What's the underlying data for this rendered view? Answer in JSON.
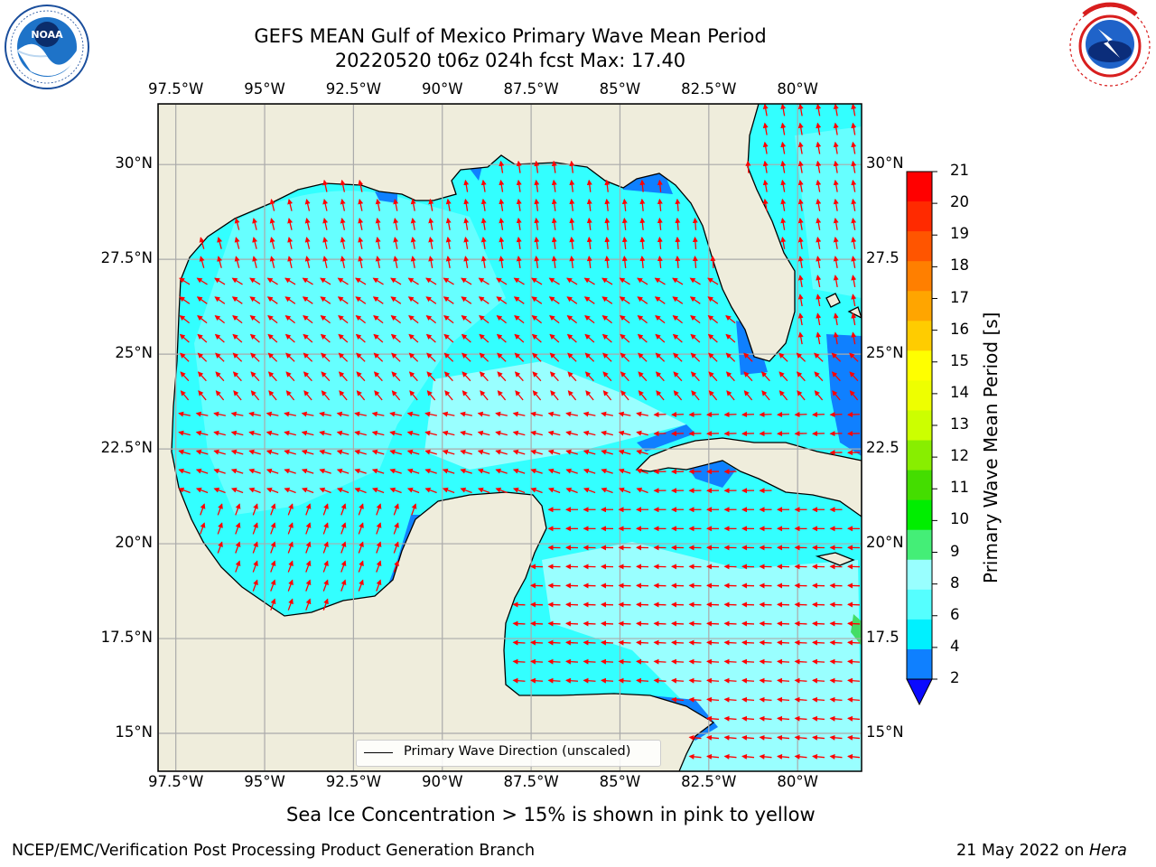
{
  "header": {
    "title_line1": "GEFS MEAN Gulf of Mexico Primary Wave Mean Period",
    "title_line2": "20220520 t06z 024h fcst   Max: 17.40",
    "left_logo": "noaa-logo",
    "right_logo": "nws-logo"
  },
  "map": {
    "lon_labels": [
      "97.5°W",
      "95°W",
      "92.5°W",
      "90°W",
      "87.5°W",
      "85°W",
      "82.5°W",
      "80°W"
    ],
    "lat_labels_left": [
      "30°N",
      "27.5°N",
      "25°N",
      "22.5°N",
      "20°N",
      "17.5°N",
      "15°N"
    ],
    "lat_labels_right": [
      "30°N",
      "27.5",
      "25°N",
      "22.5",
      "20°N",
      "17.5",
      "15°N"
    ],
    "lon_range": [
      -98,
      -78.2
    ],
    "lat_range": [
      14,
      31.6
    ],
    "land_color": "#efeddc",
    "water_colors": {
      "light_cyan": "#99ffff",
      "cyan": "#33ffff",
      "bright_cyan": "#00f0ff",
      "blue": "#0f80ff",
      "yellow": "#ffff00",
      "orange": "#ff9900",
      "green": "#44dd66"
    },
    "vector_color": "#ff0000",
    "legend_label": "Primary Wave Direction (unscaled)"
  },
  "colorbar": {
    "title": "Primary Wave Mean Period [s]",
    "tick_labels": [
      "21",
      "20",
      "19",
      "18",
      "17",
      "16",
      "15",
      "14",
      "13",
      "12",
      "11",
      "10",
      "9",
      "8",
      "6",
      "4",
      "2"
    ],
    "colors": [
      "#ff0000",
      "#ff2a00",
      "#ff5500",
      "#ff7f00",
      "#ffa500",
      "#ffcc00",
      "#ffff00",
      "#eeff00",
      "#ccff00",
      "#88ee00",
      "#44dd00",
      "#00ee00",
      "#44ee77",
      "#99ffff",
      "#55ffff",
      "#00f0ff",
      "#0f80ff"
    ],
    "under_color": "#0a0aff"
  },
  "caption": "Sea Ice Concentration > 15% is shown in pink to yellow",
  "footer": {
    "left": "NCEP/EMC/Verification Post Processing Product Generation Branch",
    "right_date": "21 May 2022 on ",
    "right_host": "Hera"
  }
}
